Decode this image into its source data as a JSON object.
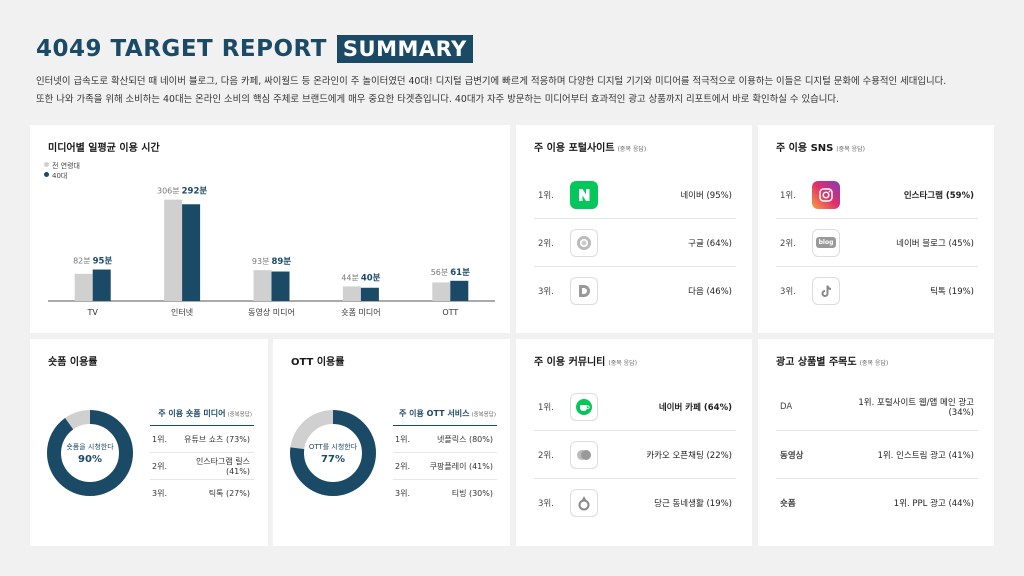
{
  "header": {
    "title_main": "4049 TARGET REPORT",
    "title_highlight": "SUMMARY",
    "desc_line1": "인터넷이 급속도로 확산되던 때 네이버 블로그, 다음 카페, 싸이월드 등 온라인이 주 놀이터였던 40대! 디지털 급변기에 빠르게 적응하며 다양한 디지털 기기와 미디어를 적극적으로 이용하는 이들은 디지털 문화에 수용적인 세대입니다.",
    "desc_line2": "또한 나와 가족을 위해 소비하는 40대는 온라인 소비의 핵심 주체로 브랜드에게 매우 중요한 타겟층입니다. 40대가 자주 방문하는 미디어부터 효과적인 광고 상품까지 리포트에서 바로 확인하실 수 있습니다."
  },
  "media_card": {
    "title": "미디어별 일평균 이용 시간",
    "legend": [
      {
        "label": "전 연령대",
        "color": "#d0d0d0"
      },
      {
        "label": "40대",
        "color": "#1b4a66"
      }
    ]
  },
  "chart_data": {
    "type": "bar",
    "title": "미디어별 일평균 이용 시간",
    "categories": [
      "TV",
      "인터넷",
      "동영상 미디어",
      "숏폼 미디어",
      "OTT"
    ],
    "series": [
      {
        "name": "전 연령대",
        "values": [
          82,
          306,
          93,
          44,
          56
        ],
        "color": "#d0d0d0"
      },
      {
        "name": "40대",
        "values": [
          95,
          292,
          89,
          40,
          61
        ],
        "color": "#1b4a66"
      }
    ],
    "unit": "분",
    "all_labels": [
      "82분",
      "306분",
      "93분",
      "44분",
      "56분"
    ],
    "forty_labels": [
      "95분",
      "292분",
      "89분",
      "40분",
      "61분"
    ],
    "ylim": [
      0,
      320
    ]
  },
  "portal_card": {
    "title": "주 이용 포털사이트",
    "sub": "(중복 응답)",
    "items": [
      {
        "rank": "1위.",
        "label": "네이버 (95%)",
        "icon": "naver-icon"
      },
      {
        "rank": "2위.",
        "label": "구글 (64%)",
        "icon": "google-icon"
      },
      {
        "rank": "3위.",
        "label": "다음 (46%)",
        "icon": "daum-icon"
      }
    ]
  },
  "sns_card": {
    "title": "주 이용 SNS",
    "sub": "(중복 응답)",
    "items": [
      {
        "rank": "1위.",
        "label": "인스타그램 (59%)",
        "icon": "instagram-icon"
      },
      {
        "rank": "2위.",
        "label": "네이버 블로그 (45%)",
        "icon": "blog-icon",
        "icon_text": "blog"
      },
      {
        "rank": "3위.",
        "label": "틱톡 (19%)",
        "icon": "tiktok-icon"
      }
    ]
  },
  "shortform_card": {
    "title": "숏폼 이용률",
    "donut_text": "숏폼을 시청한다",
    "donut_value": "90%",
    "donut_fraction": 0.9,
    "list_title": "주 이용 숏폼 미디어",
    "list_sub": "(중복응답)",
    "items": [
      {
        "rank": "1위.",
        "label": "유튜브 쇼츠 (73%)"
      },
      {
        "rank": "2위.",
        "label": "인스타그램 릴스 (41%)"
      },
      {
        "rank": "3위.",
        "label": "틱톡 (27%)"
      }
    ]
  },
  "ott_card": {
    "title": "OTT 이용률",
    "donut_text": "OTT를 시청한다",
    "donut_value": "77%",
    "donut_fraction": 0.77,
    "list_title": "주 이용 OTT 서비스",
    "list_sub": "(중복응답)",
    "items": [
      {
        "rank": "1위.",
        "label": "넷플릭스 (80%)"
      },
      {
        "rank": "2위.",
        "label": "쿠팡플레이 (41%)"
      },
      {
        "rank": "3위.",
        "label": "티빙 (30%)"
      }
    ]
  },
  "community_card": {
    "title": "주 이용 커뮤니티",
    "sub": "(중복 응답)",
    "items": [
      {
        "rank": "1위.",
        "label": "네이버 카페 (64%)",
        "icon": "naver-cafe-icon"
      },
      {
        "rank": "2위.",
        "label": "카카오 오픈채팅 (22%)",
        "icon": "kakao-openchat-icon"
      },
      {
        "rank": "3위.",
        "label": "당근 동네생활 (19%)",
        "icon": "daangn-icon"
      }
    ]
  },
  "ad_card": {
    "title": "광고 상품별 주목도",
    "sub": "(중복 응답)",
    "items": [
      {
        "type": "DA",
        "label": "1위. 포털사이트 웹/앱 메인 광고 (34%)"
      },
      {
        "type": "동영상",
        "label": "1위. 인스트림 광고 (41%)"
      },
      {
        "type": "숏폼",
        "label": "1위. PPL 광고 (44%)"
      }
    ]
  },
  "colors": {
    "accent": "#1b4a66",
    "gray_bar": "#d0d0d0"
  }
}
